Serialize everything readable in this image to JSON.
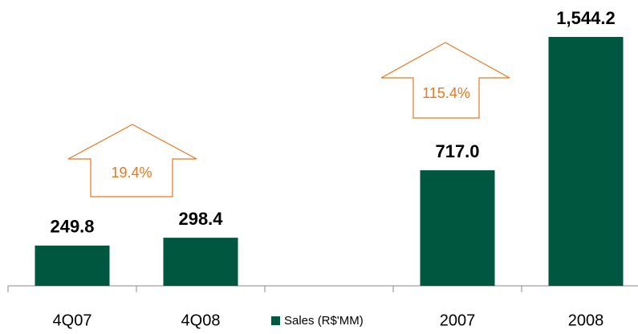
{
  "chart_data": {
    "type": "bar",
    "categories": [
      "4Q07",
      "4Q08",
      null,
      "2007",
      "2008"
    ],
    "series": [
      {
        "name": "Sales (R$'MM)",
        "color": "#00573f",
        "values": [
          249.8,
          298.4,
          null,
          717.0,
          1544.2
        ],
        "value_labels": [
          "249.8",
          "298.4",
          null,
          "717.0",
          "1,544.2"
        ]
      }
    ],
    "annotations": [
      "19.4%",
      "115.4%"
    ],
    "annotation_color": "#e87722"
  }
}
